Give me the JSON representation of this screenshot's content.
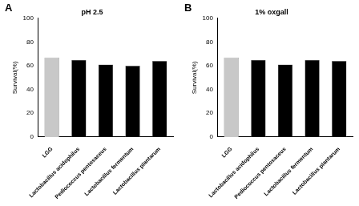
{
  "chart_data": [
    {
      "type": "bar",
      "annotation": "A",
      "title": "pH 2.5",
      "y_label": "Survival(%)",
      "categories": [
        "LGG",
        "Lactobacillus acidophilus",
        "Pediococcus pentosaceus",
        "Lactobacillus fermentum",
        "Lactobacillus plantarum"
      ],
      "values": [
        67,
        65,
        61,
        60,
        64
      ],
      "colors": [
        "#c8c8c8",
        "#000000",
        "#000000",
        "#000000",
        "#000000"
      ],
      "ylim": [
        0,
        100
      ],
      "yticks": [
        0,
        20,
        40,
        60,
        80,
        100
      ],
      "grid": false
    },
    {
      "type": "bar",
      "annotation": "B",
      "title": "1% oxgall",
      "y_label": "Survival(%)",
      "categories": [
        "LGG",
        "Lactobacillus acidophilus",
        "Pediococcus pentosaceus",
        "Lactobacillus fermentum",
        "Lactobacillus plantarum"
      ],
      "values": [
        67,
        65,
        61,
        65,
        64
      ],
      "colors": [
        "#c8c8c8",
        "#000000",
        "#000000",
        "#000000",
        "#000000"
      ],
      "ylim": [
        0,
        100
      ],
      "yticks": [
        0,
        20,
        40,
        60,
        80,
        100
      ],
      "grid": false
    }
  ]
}
